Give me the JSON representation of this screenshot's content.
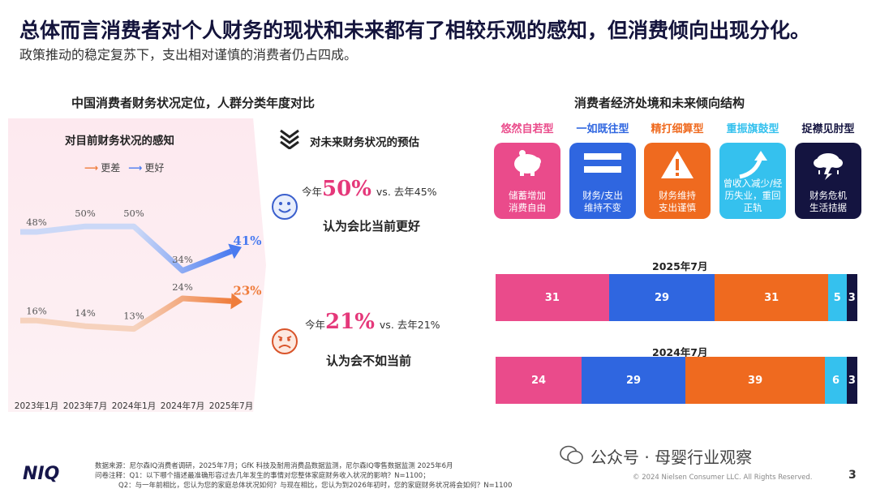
{
  "header": {
    "title": "总体而言消费者对个人财务的现状和未来都有了相较乐观的感知，但消费倾向出现分化。",
    "subtitle": "政策推动的稳定复苏下，支出相对谨慎的消费者仍占四成。"
  },
  "left_section": {
    "title": "中国消费者财务状况定位，人群分类年度对比",
    "chart_title": "对目前财务状况的感知",
    "legend": {
      "worse": "更差",
      "better": "更好"
    }
  },
  "colors": {
    "better": "#4a7bf0",
    "better_light": "#cbd8f7",
    "worse": "#ef7d3c",
    "worse_light": "#f6d2bd",
    "accent_pink": "#e5387a",
    "cat1": "#ea4b8b",
    "cat2": "#2f66e0",
    "cat3": "#ef6a1f",
    "cat4": "#35c1ee",
    "cat5": "#141440"
  },
  "chart_data": {
    "type": "line",
    "x": [
      "2023年1月",
      "2023年7月",
      "2024年1月",
      "2024年7月",
      "2025年7月"
    ],
    "ylim": [
      0,
      60
    ],
    "series": [
      {
        "name": "更差",
        "values": [
          16,
          14,
          13,
          24,
          23
        ],
        "labels": [
          "16%",
          "14%",
          "13%",
          "24%",
          "23%"
        ]
      },
      {
        "name": "更好",
        "values": [
          48,
          50,
          50,
          34,
          41
        ],
        "labels": [
          "48%",
          "50%",
          "50%",
          "34%",
          "41%"
        ]
      }
    ]
  },
  "middle_section": {
    "title": "对未来财务状况的预估",
    "better": {
      "prefix": "今年",
      "value": "50%",
      "vs": "vs. 去年45%",
      "caption": "认为会比当前更好"
    },
    "worse": {
      "prefix": "今年",
      "value": "21%",
      "vs": "vs. 去年21%",
      "caption": "认为会不如当前"
    }
  },
  "right_section": {
    "title": "消费者经济处境和未来倾向结构",
    "categories": [
      {
        "name": "悠然自若型",
        "desc_line1": "储蓄增加",
        "desc_line2": "消费自由",
        "desc_line3": "",
        "icon": "piggy-bank-icon"
      },
      {
        "name": "一如既往型",
        "desc_line1": "财务/支出",
        "desc_line2": "维持不变",
        "desc_line3": "",
        "icon": "equals-icon"
      },
      {
        "name": "精打细算型",
        "desc_line1": "财务维持",
        "desc_line2": "支出谨慎",
        "desc_line3": "",
        "icon": "warning-icon"
      },
      {
        "name": "重振旗鼓型",
        "desc_line1": "曾收入减少/经",
        "desc_line2": "历失业，重回",
        "desc_line3": "正轨",
        "icon": "rising-arrow-icon"
      },
      {
        "name": "捉襟见肘型",
        "desc_line1": "财务危机",
        "desc_line2": "生活拮据",
        "desc_line3": "",
        "icon": "storm-cloud-icon"
      }
    ],
    "bars": [
      {
        "year": "2025年7月",
        "values": [
          31,
          29,
          31,
          5,
          3
        ],
        "labels": [
          "31",
          "29",
          "31",
          "5",
          "3"
        ]
      },
      {
        "year": "2024年7月",
        "values": [
          24,
          29,
          39,
          6,
          3
        ],
        "labels": [
          "24",
          "29",
          "39",
          "6",
          "3"
        ]
      }
    ]
  },
  "footer": {
    "source": "数据来源：尼尔森IQ消费者调研，2025年7月；GfK 科技及耐用消费品数据监测，尼尔森IQ零售数据监测  2025年6月",
    "q1": "问卷注释：Q1：以下哪个描述最准确形容过去几年发生的事情对您整体家庭财务收入状况的影响？N=1100；",
    "q2": "Q2：与一年前相比，您认为您的家庭总体状况如何？与现在相比，您认为到2026年初时，您的家庭财务状况将会如何？N=1100",
    "copyright": "© 2024 Nielsen Consumer LLC. All Rights Reserved.",
    "page": "3",
    "logo": "NIQ",
    "watermark": "公众号 · 母婴行业观察"
  }
}
